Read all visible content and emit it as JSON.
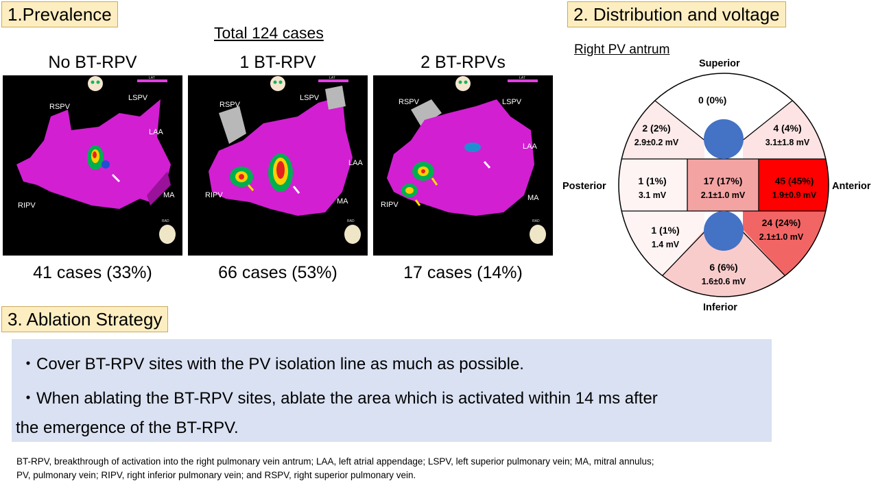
{
  "prevalence": {
    "header": "1.Prevalence",
    "total": "Total 124 cases",
    "panels": [
      {
        "title": "No BT-RPV",
        "cases": "41 cases (33%)",
        "labels": {
          "rspv": "RSPV",
          "lspv": "LSPV",
          "laa": "LAA",
          "ripv": "RIPV",
          "ma": "MA"
        }
      },
      {
        "title": "1 BT-RPV",
        "cases": "66 cases (53%)",
        "labels": {
          "rspv": "RSPV",
          "lspv": "LSPV",
          "laa": "LAA",
          "ripv": "RIPV",
          "ma": "MA"
        }
      },
      {
        "title": "2 BT-RPVs",
        "cases": "17 cases (14%)",
        "labels": {
          "rspv": "RSPV",
          "lspv": "LSPV",
          "laa": "LAA",
          "ripv": "RIPV",
          "ma": "MA"
        }
      }
    ],
    "legend_label": "LAT",
    "view_label": "RAD"
  },
  "distribution": {
    "header": "2. Distribution and voltage",
    "subtitle": "Right PV antrum",
    "directions": {
      "superior": "Superior",
      "inferior": "Inferior",
      "posterior": "Posterior",
      "anterior": "Anterior"
    },
    "segments": {
      "superior": {
        "count": "0 (0%)",
        "voltage": "",
        "color": "#ffffff"
      },
      "posterior_upper": {
        "count": "2 (2%)",
        "voltage": "2.9±0.2 mV",
        "color": "#fdeaea"
      },
      "anterior_upper": {
        "count": "4 (4%)",
        "voltage": "3.1±1.8 mV",
        "color": "#fde3e3"
      },
      "posterior_mid": {
        "count": "1 (1%)",
        "voltage": "3.1 mV",
        "color": "#fff4f4"
      },
      "center_mid": {
        "count": "17 (17%)",
        "voltage": "2.1±1.0 mV",
        "color": "#f4a3a3"
      },
      "anterior_mid": {
        "count": "45 (45%)",
        "voltage": "1.9±0.9 mV",
        "color": "#ff0000"
      },
      "posterior_lower": {
        "count": "1 (1%)",
        "voltage": "1.4 mV",
        "color": "#fff4f4"
      },
      "anterior_lower": {
        "count": "24 (24%)",
        "voltage": "2.1±1.0 mV",
        "color": "#f26565"
      },
      "inferior": {
        "count": "6 (6%)",
        "voltage": "1.6±0.6 mV",
        "color": "#f9cccc"
      }
    },
    "vein_color": "#4472c4"
  },
  "ablation": {
    "header": "3. Ablation Strategy",
    "bullet1": "・Cover BT-RPV sites with the PV isolation line as much as possible.",
    "bullet2_line1": "・When ablating the BT-RPV sites,  ablate the area which is activated within 14 ms after",
    "bullet2_line2": "the emergence of the BT-RPV."
  },
  "footnote": {
    "line1": "BT-RPV, breakthrough of activation into the right pulmonary vein antrum; LAA, left atrial appendage; LSPV, left superior pulmonary vein; MA, mitral annulus;",
    "line2": "PV, pulmonary vein; RIPV, right inferior pulmonary vein; and RSPV, right superior pulmonary vein."
  }
}
